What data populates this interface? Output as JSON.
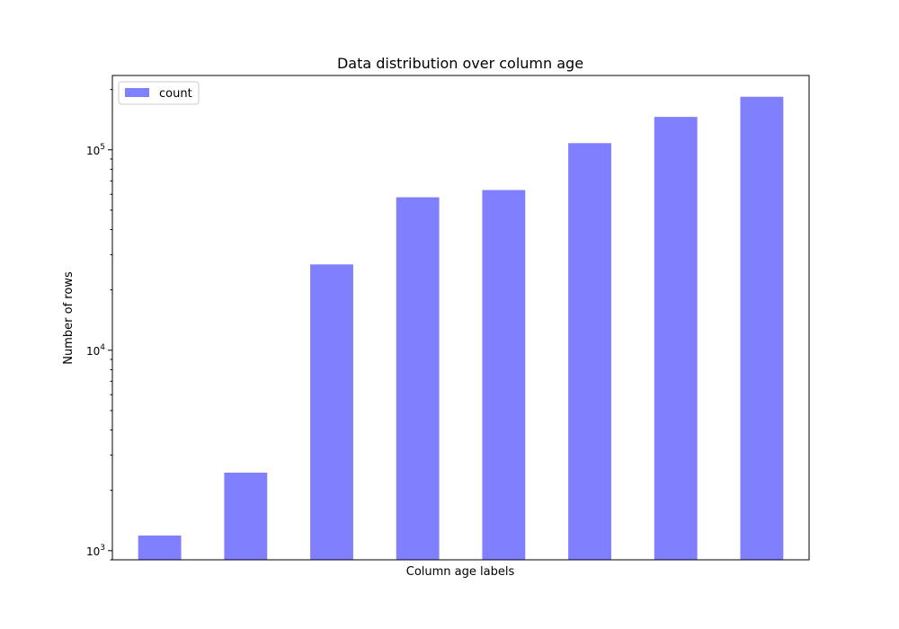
{
  "chart_data": {
    "type": "bar",
    "title": "Data distribution over column age",
    "xlabel": "Column age labels",
    "ylabel": "Number of rows",
    "yscale": "log",
    "ylim": [
      900,
      235000
    ],
    "y_ticks": [
      {
        "value": 1000,
        "base": "10",
        "exp": "3"
      },
      {
        "value": 10000,
        "base": "10",
        "exp": "4"
      },
      {
        "value": 100000,
        "base": "10",
        "exp": "5"
      }
    ],
    "categories": [
      "",
      "",
      "",
      "",
      "",
      "",
      "",
      ""
    ],
    "series": [
      {
        "name": "count",
        "color": "#8080ff",
        "values": [
          1190,
          2450,
          26800,
          58000,
          63000,
          108000,
          146000,
          184000
        ]
      }
    ],
    "legend": {
      "position": "top-left",
      "entries": [
        "count"
      ]
    },
    "grid": false
  }
}
